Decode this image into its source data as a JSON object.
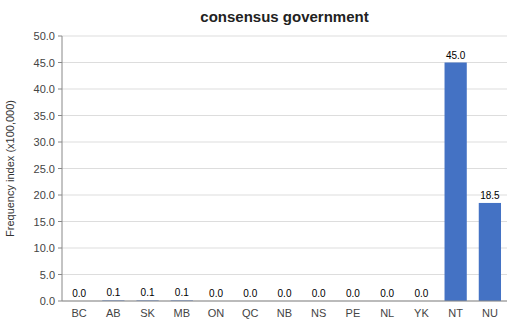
{
  "chart_data": {
    "type": "bar",
    "title": "consensus government",
    "categories": [
      "BC",
      "AB",
      "SK",
      "MB",
      "ON",
      "QC",
      "NB",
      "NS",
      "PE",
      "NL",
      "YK",
      "NT",
      "NU"
    ],
    "values": [
      0.0,
      0.1,
      0.1,
      0.1,
      0.0,
      0.0,
      0.0,
      0.0,
      0.0,
      0.0,
      0.0,
      45.0,
      18.5
    ],
    "value_labels": [
      "0.0",
      "0.1",
      "0.1",
      "0.1",
      "0.0",
      "0.0",
      "0.0",
      "0.0",
      "0.0",
      "0.0",
      "0.0",
      "45.0",
      "18.5"
    ],
    "data_labels": true,
    "color": "#4472C4",
    "ylabel": "Frequency index (x100,000)",
    "ylim": [
      0,
      50
    ],
    "yticks": [
      {
        "value": 0.0,
        "label": "0.0"
      },
      {
        "value": 5.0,
        "label": "5.0"
      },
      {
        "value": 10.0,
        "label": "10.0"
      },
      {
        "value": 15.0,
        "label": "15.0"
      },
      {
        "value": 20.0,
        "label": "20.0"
      },
      {
        "value": 25.0,
        "label": "25.0"
      },
      {
        "value": 30.0,
        "label": "30.0"
      },
      {
        "value": 35.0,
        "label": "35.0"
      },
      {
        "value": 40.0,
        "label": "40.0"
      },
      {
        "value": 45.0,
        "label": "45.0"
      },
      {
        "value": 50.0,
        "label": "50.0"
      }
    ],
    "grid": true
  }
}
